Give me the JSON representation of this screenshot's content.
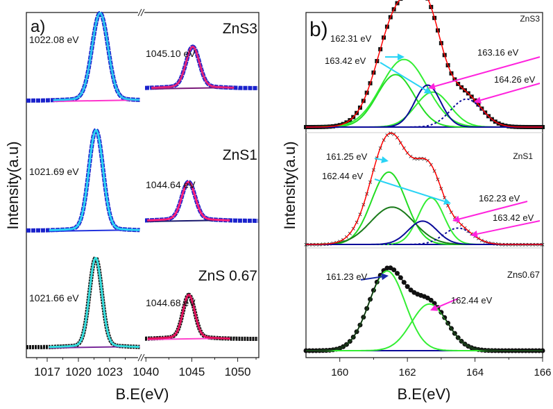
{
  "chart_data": [
    {
      "type": "line",
      "panel_label": "a)",
      "xlabel": "B.E(eV)",
      "ylabel": "Intensity(a.u)",
      "axis_break": true,
      "xlim_segments": [
        [
          1015,
          1026
        ],
        [
          1039.6,
          1052.3
        ]
      ],
      "xticks": [
        1017,
        1020,
        1023,
        1040,
        1045,
        1050
      ],
      "xtick_labels": [
        "1017",
        "1020",
        "1023",
        "1040",
        "1045",
        "1050"
      ],
      "series": [
        {
          "name": "ZnS3",
          "peaks": [
            {
              "label": "1022.08 eV",
              "center": 1022.08,
              "fwhm": 1.8,
              "height": 1.0,
              "fit_color": "#29c3f0",
              "baseline_color": "#ff33cc"
            },
            {
              "label": "1045.10 eV",
              "center": 1045.1,
              "fwhm": 1.7,
              "height": 0.46,
              "fit_color": "#e0227a",
              "baseline_color": "#7a1a7a"
            }
          ]
        },
        {
          "name": "ZnS1",
          "peaks": [
            {
              "label": "1021.69 eV",
              "center": 1021.69,
              "fwhm": 1.6,
              "height": 1.15,
              "fit_color": "#29d3f5",
              "baseline_color": "#2233dd"
            },
            {
              "label": "1044.64 eV",
              "center": 1044.64,
              "fwhm": 1.7,
              "height": 0.43,
              "fit_color": "#ff1f7a",
              "baseline_color": "#1a1a6e"
            }
          ]
        },
        {
          "name": "ZnS 0.67",
          "peaks": [
            {
              "label": "1021.66 eV",
              "center": 1021.66,
              "fwhm": 1.4,
              "height": 1.02,
              "fit_color": "#33dddd",
              "baseline_color": "#7a2a9a"
            },
            {
              "label": "1044.68 eV",
              "center": 1044.68,
              "fwhm": 1.5,
              "height": 0.49,
              "fit_color": "#e0105a",
              "baseline_color": "#ff44cc"
            }
          ]
        }
      ]
    },
    {
      "type": "line",
      "panel_label": "b)",
      "xlabel": "B.E(eV)",
      "ylabel": "Intensity(a.u)",
      "xlim": [
        159,
        166
      ],
      "xticks": [
        160,
        162,
        164,
        166
      ],
      "xtick_labels": [
        "160",
        "162",
        "164",
        "166"
      ],
      "series": [
        {
          "name": "ZnS3",
          "envelope_color": "#ff0000",
          "components": [
            {
              "center": 161.65,
              "fwhm": 1.3,
              "height": 0.45,
              "color": "#22dd22",
              "style": "solid"
            },
            {
              "center": 161.9,
              "fwhm": 1.6,
              "height": 0.58,
              "color": "#33ee33",
              "style": "solid"
            },
            {
              "center": 162.75,
              "fwhm": 1.2,
              "height": 0.3,
              "color": "#33ee33",
              "style": "solid"
            },
            {
              "center": 162.6,
              "fwhm": 0.9,
              "height": 0.36,
              "color": "#0a0a99",
              "style": "solid"
            },
            {
              "center": 163.75,
              "fwhm": 1.1,
              "height": 0.24,
              "color": "#0a0a99",
              "style": "dashed"
            }
          ],
          "annotations": [
            {
              "text": "162.31 eV",
              "color": "#29d3f5"
            },
            {
              "text": "163.42 eV",
              "color": "#29d3f5"
            },
            {
              "text": "163.16 eV",
              "color": "#ff22dd"
            },
            {
              "text": "164.26 eV",
              "color": "#ff22dd"
            }
          ]
        },
        {
          "name": "ZnS1",
          "envelope_color": "#ff0000",
          "components": [
            {
              "center": 161.45,
              "fwhm": 1.2,
              "height": 0.62,
              "color": "#22dd22",
              "style": "solid"
            },
            {
              "center": 161.55,
              "fwhm": 1.5,
              "height": 0.32,
              "color": "#1a7a1a",
              "style": "solid"
            },
            {
              "center": 162.7,
              "fwhm": 0.9,
              "height": 0.4,
              "color": "#33ee33",
              "style": "solid"
            },
            {
              "center": 162.45,
              "fwhm": 1.0,
              "height": 0.2,
              "color": "#0a0a99",
              "style": "solid"
            },
            {
              "center": 163.5,
              "fwhm": 1.0,
              "height": 0.14,
              "color": "#0a0a99",
              "style": "dashed"
            }
          ],
          "annotations": [
            {
              "text": "161.25 eV",
              "color": "#29d3f5"
            },
            {
              "text": "162.44 eV",
              "color": "#29d3f5"
            },
            {
              "text": "162.23 eV",
              "color": "#ff22dd"
            },
            {
              "text": "163.42 eV",
              "color": "#ff22dd"
            }
          ]
        },
        {
          "name": "Zns0.67",
          "envelope_color": "#111111",
          "components": [
            {
              "center": 161.4,
              "fwhm": 1.25,
              "height": 0.82,
              "color": "#33ee33",
              "style": "solid"
            },
            {
              "center": 162.65,
              "fwhm": 1.25,
              "height": 0.48,
              "color": "#33ee33",
              "style": "solid"
            }
          ],
          "annotations": [
            {
              "text": "161.23 eV",
              "color": "#1a2aaa"
            },
            {
              "text": "162.44 eV",
              "color": "#ff22dd"
            }
          ]
        }
      ]
    }
  ]
}
